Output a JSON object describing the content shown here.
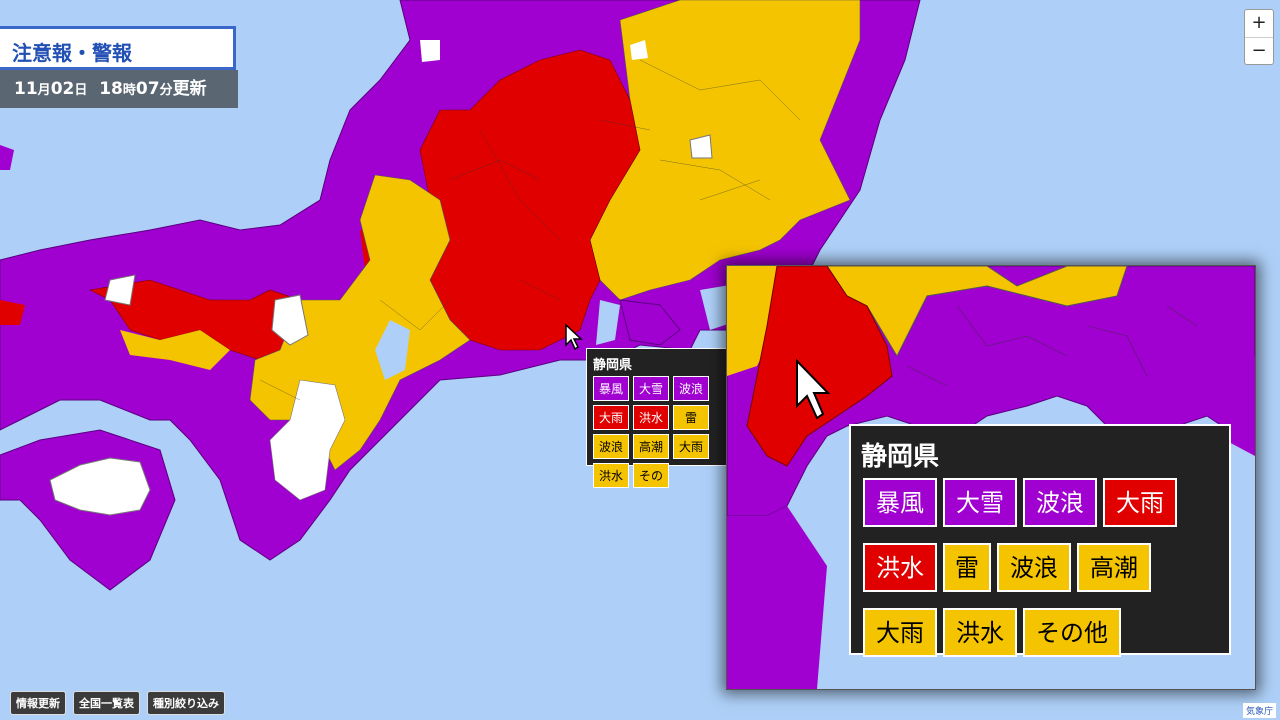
{
  "panel": {
    "title": "注意報・警報",
    "date": "11月02日",
    "date_parts": [
      "11",
      "月",
      "02",
      "日"
    ],
    "time_parts": [
      "18",
      "時",
      "07",
      "分"
    ],
    "update_label": "更新"
  },
  "zoom_controls": {
    "in": "+",
    "out": "−"
  },
  "bottom_buttons": [
    "情報更新",
    "全国一覧表",
    "種別絞り込み"
  ],
  "attribution": "気象庁",
  "legend_colors": {
    "special_warning": "#a000d0",
    "warning": "#e00000",
    "advisory": "#f5c400",
    "none": "#ffffff",
    "sea": "#aed0f8"
  },
  "popup": {
    "prefecture": "静岡県",
    "rows": [
      [
        {
          "label": "暴風",
          "level": "purple"
        },
        {
          "label": "大雪",
          "level": "purple"
        },
        {
          "label": "波浪",
          "level": "purple"
        },
        {
          "label": "大雨",
          "level": "red"
        }
      ],
      [
        {
          "label": "洪水",
          "level": "red"
        },
        {
          "label": "雷",
          "level": "yellow"
        },
        {
          "label": "波浪",
          "level": "yellow"
        },
        {
          "label": "高潮",
          "level": "yellow"
        }
      ],
      [
        {
          "label": "大雨",
          "level": "yellow"
        },
        {
          "label": "洪水",
          "level": "yellow"
        },
        {
          "label": "その他",
          "level": "yellow"
        }
      ]
    ]
  }
}
